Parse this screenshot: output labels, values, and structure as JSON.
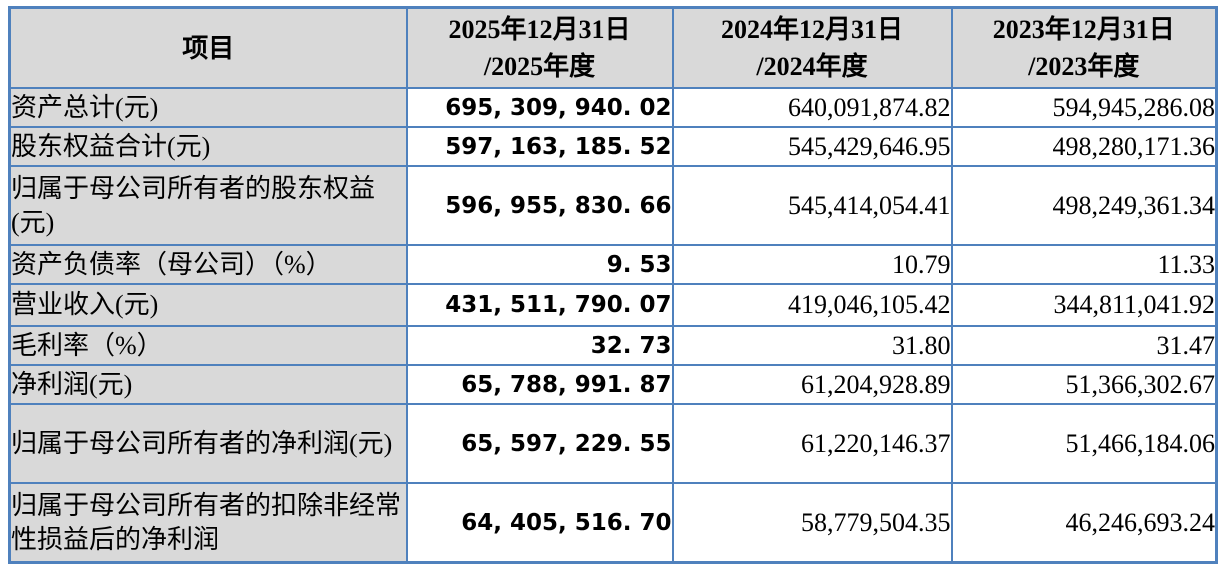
{
  "colors": {
    "border_blue": "#4f81bd",
    "header_gray": "#d9d9d9",
    "data_bg": "#ffffff",
    "text": "#000000"
  },
  "table": {
    "item_header": "项目",
    "period_headers": [
      {
        "line1": "2025年12月31日",
        "line2": "/2025年度"
      },
      {
        "line1": "2024年12月31日",
        "line2": "/2024年度"
      },
      {
        "line1": "2023年12月31日",
        "line2": "/2023年度"
      }
    ],
    "rows": [
      {
        "label": "资产总计(元)",
        "y2025": "695, 309, 940. 02",
        "y2024": "640,091,874.82",
        "y2023": "594,945,286.08"
      },
      {
        "label": "股东权益合计(元)",
        "y2025": "597, 163, 185. 52",
        "y2024": "545,429,646.95",
        "y2023": "498,280,171.36"
      },
      {
        "label": "归属于母公司所有者的股东权益(元)",
        "y2025": "596, 955, 830. 66",
        "y2024": "545,414,054.41",
        "y2023": "498,249,361.34"
      },
      {
        "label": "资产负债率（母公司）（%）",
        "y2025": "9. 53",
        "y2024": "10.79",
        "y2023": "11.33"
      },
      {
        "label": "营业收入(元)",
        "y2025": "431, 511, 790. 07",
        "y2024": "419,046,105.42",
        "y2023": "344,811,041.92"
      },
      {
        "label": "毛利率（%）",
        "y2025": "32. 73",
        "y2024": "31.80",
        "y2023": "31.47"
      },
      {
        "label": "净利润(元)",
        "y2025": "65, 788, 991. 87",
        "y2024": "61,204,928.89",
        "y2023": "51,366,302.67"
      },
      {
        "label": "归属于母公司所有者的净利润(元)",
        "y2025": "65, 597, 229. 55",
        "y2024": "61,220,146.37",
        "y2023": "51,466,184.06"
      },
      {
        "label": "归属于母公司所有者的扣除非经常性损益后的净利润",
        "y2025": "64, 405, 516. 70",
        "y2024": "58,779,504.35",
        "y2023": "46,246,693.24"
      }
    ]
  }
}
